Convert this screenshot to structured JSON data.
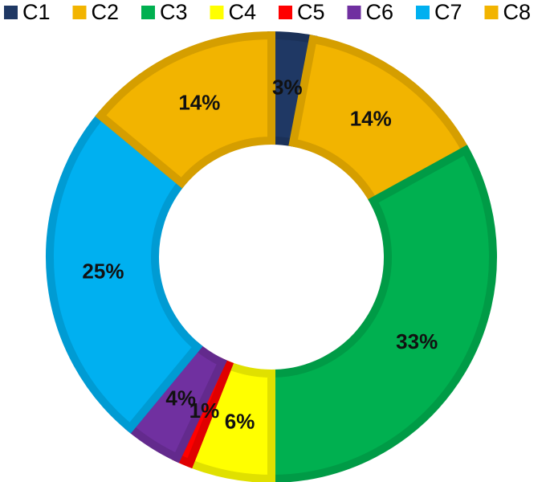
{
  "chart_data": {
    "type": "donut",
    "categories": [
      "C1",
      "C2",
      "C3",
      "C4",
      "C5",
      "C6",
      "C7",
      "C8"
    ],
    "values": [
      3,
      14,
      33,
      6,
      1,
      4,
      25,
      14
    ],
    "value_labels": [
      "3%",
      "14%",
      "33%",
      "6%",
      "1%",
      "4%",
      "25%",
      "14%"
    ],
    "colors": [
      "#1f3864",
      "#f2b400",
      "#00b050",
      "#ffff00",
      "#ff0000",
      "#7030a0",
      "#00b0f0",
      "#f2b400"
    ],
    "legend": "top"
  }
}
